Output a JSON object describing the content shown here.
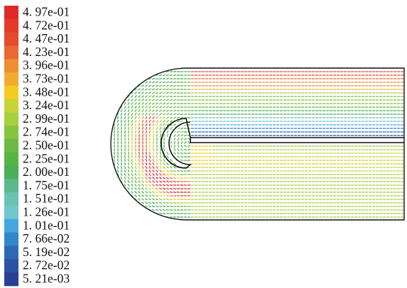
{
  "chart_data": {
    "type": "heatmap",
    "description_kind": "velocity-magnitude vector contour plot of flow around a U-bend",
    "colorbar": {
      "orientation": "vertical",
      "placement": "left",
      "levels": [
        {
          "label": "4. 97e-01",
          "value": 0.497,
          "color": "#e0292b"
        },
        {
          "label": "4. 72e-01",
          "value": 0.472,
          "color": "#e33a2c"
        },
        {
          "label": "4. 47e-01",
          "value": 0.447,
          "color": "#e44a2e"
        },
        {
          "label": "4. 23e-01",
          "value": 0.423,
          "color": "#e86a32"
        },
        {
          "label": "3. 96e-01",
          "value": 0.396,
          "color": "#ee8d34"
        },
        {
          "label": "3. 73e-01",
          "value": 0.373,
          "color": "#f2ab32"
        },
        {
          "label": "3. 48e-01",
          "value": 0.348,
          "color": "#f5cc20"
        },
        {
          "label": "3. 24e-01",
          "value": 0.324,
          "color": "#c8d33a"
        },
        {
          "label": "2. 99e-01",
          "value": 0.299,
          "color": "#a8cf3d"
        },
        {
          "label": "2. 74e-01",
          "value": 0.274,
          "color": "#86c341"
        },
        {
          "label": "2. 50e-01",
          "value": 0.25,
          "color": "#6cba44"
        },
        {
          "label": "2. 25e-01",
          "value": 0.225,
          "color": "#55b446"
        },
        {
          "label": "2. 00e-01",
          "value": 0.2,
          "color": "#4cae57"
        },
        {
          "label": "1. 75e-01",
          "value": 0.175,
          "color": "#5db88c"
        },
        {
          "label": "1. 51e-01",
          "value": 0.151,
          "color": "#6ac2b0"
        },
        {
          "label": "1. 26e-01",
          "value": 0.126,
          "color": "#71c7cf"
        },
        {
          "label": "1. 01e-01",
          "value": 0.101,
          "color": "#45a7dd"
        },
        {
          "label": "7. 66e-02",
          "value": 0.0766,
          "color": "#3585cc"
        },
        {
          "label": "5. 19e-02",
          "value": 0.0519,
          "color": "#2e69b7"
        },
        {
          "label": "2. 72e-02",
          "value": 0.0272,
          "color": "#2a53a4"
        },
        {
          "label": "5. 21e-03",
          "value": 0.00521,
          "color": "#283f93"
        }
      ]
    },
    "title": "",
    "xlabel": "",
    "ylabel": "",
    "grid": false
  }
}
